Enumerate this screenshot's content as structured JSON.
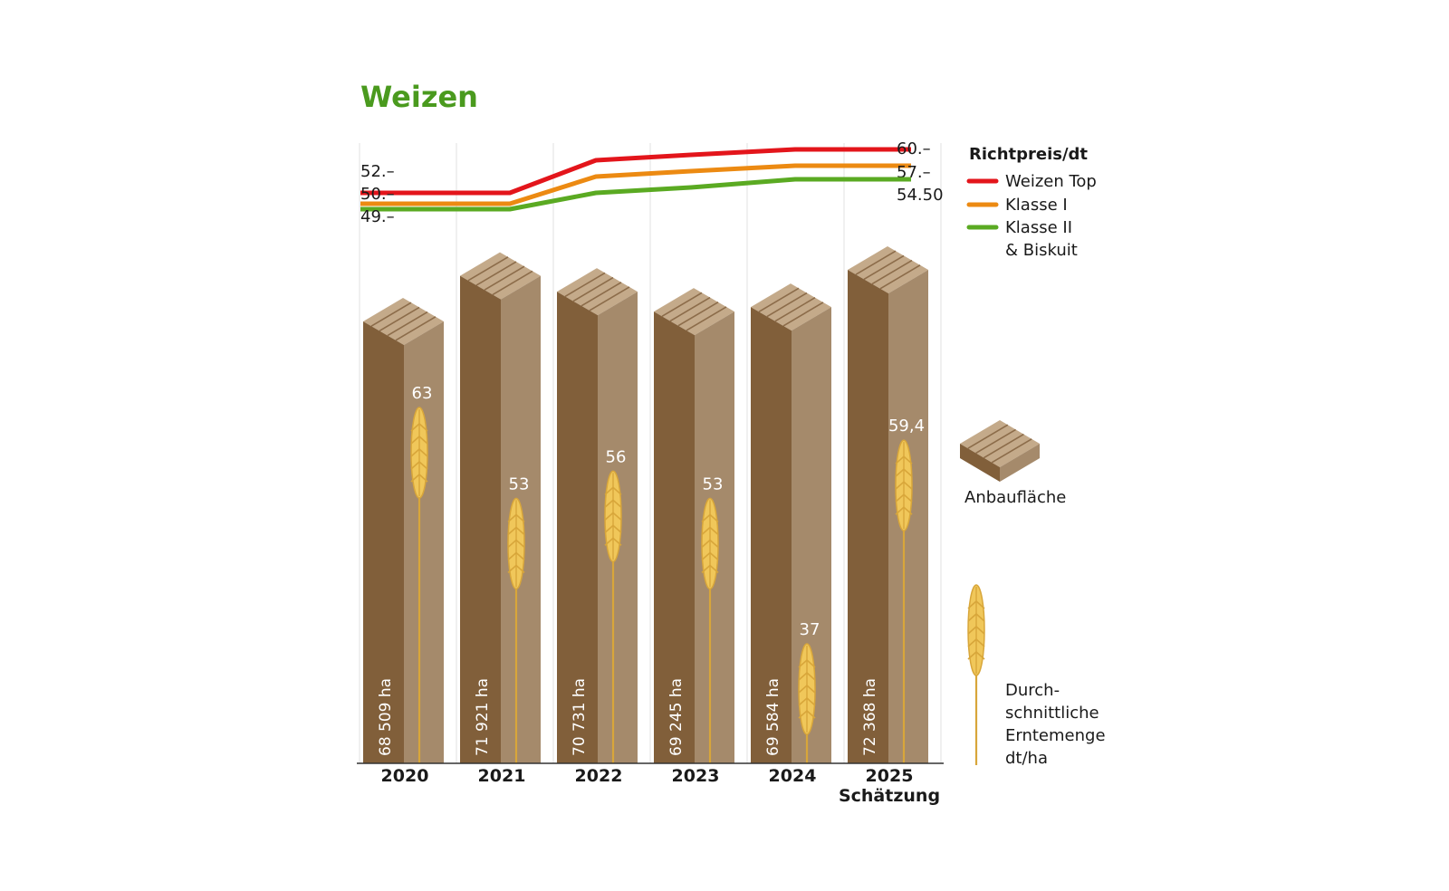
{
  "chart_data": {
    "type": "bar",
    "title": "Weizen",
    "categories": [
      "2020",
      "2021",
      "2022",
      "2023",
      "2024",
      "2025"
    ],
    "category_sublabels": [
      "",
      "",
      "",
      "",
      "",
      "Schätzung"
    ],
    "anbauflaeche": {
      "legend": "Anbaufläche",
      "unit": "ha",
      "values": [
        68509,
        71921,
        70731,
        69245,
        69584,
        72368
      ],
      "labels": [
        "68 509 ha",
        "71 921 ha",
        "70 731 ha",
        "69 245 ha",
        "69 584 ha",
        "72 368 ha"
      ]
    },
    "erntemenge": {
      "legend": [
        "Durch-",
        "schnittliche",
        "Erntemenge",
        "dt/ha"
      ],
      "values": [
        63,
        53,
        56,
        53,
        37,
        59.4
      ],
      "labels": [
        "63",
        "53",
        "56",
        "53",
        "37",
        "59,4"
      ]
    },
    "richtpreis": {
      "legend_title": "Richtpreis/dt",
      "series": [
        {
          "name": "Weizen Top",
          "color": "#e3151b",
          "values": [
            52,
            52,
            58,
            59,
            60,
            60
          ],
          "start_label": "52.–",
          "end_label": "60.–"
        },
        {
          "name": "Klasse I",
          "color": "#ec8a12",
          "values": [
            50,
            50,
            55,
            56,
            57,
            57
          ],
          "start_label": "50.–",
          "end_label": "57.–"
        },
        {
          "name": [
            "Klasse II",
            "& Biskuit"
          ],
          "color": "#5aaa22",
          "values": [
            49,
            49,
            52,
            53,
            54.5,
            54.5
          ],
          "start_label": "49.–",
          "end_label": "54.50"
        }
      ]
    },
    "colors": {
      "bar_front": "#815f3a",
      "bar_side": "#a58a6b",
      "bar_top": "#c4aa8a",
      "top_stripe": "#8c6c4a",
      "wheat": "#f0c75a",
      "wheat_stroke": "#d8a63a",
      "title": "#4a9a1e"
    }
  }
}
